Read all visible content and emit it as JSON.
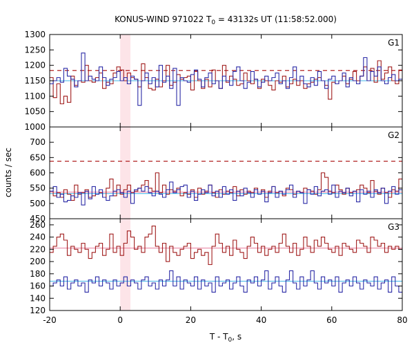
{
  "chart_data": {
    "type": "line",
    "title": {
      "prefix": "KONUS-WIND 971022 T",
      "sub": "0",
      "suffix": " = 43132s UT (11:58:52.000)"
    },
    "xlabel": {
      "prefix": "T - T",
      "sub": "0",
      "suffix": ", s"
    },
    "ylabel": "counts / sec",
    "xlim": [
      -20,
      80
    ],
    "x_ticks": [
      -20,
      0,
      20,
      40,
      60,
      80
    ],
    "x_tick_labels": [
      "-20",
      "0",
      "20",
      "40",
      "60",
      "80"
    ],
    "highlight_interval": [
      0,
      2.9
    ],
    "highlight_color": "#fde4e8",
    "series_colors": {
      "red": "#a01c1c",
      "blue": "#2a2aa6"
    },
    "panels": [
      {
        "label": "G1",
        "ylim": [
          1000,
          1300
        ],
        "y_ticks": [
          1000,
          1050,
          1100,
          1150,
          1200,
          1250,
          1300
        ],
        "y_tick_labels": [
          "1000",
          "1050",
          "1100",
          "1150",
          "1200",
          "1250",
          "1300"
        ],
        "baseline_red": 1150,
        "baseline_blue": 1150,
        "threshold_red": 1183,
        "bin_width": 1.0,
        "x_start": -20,
        "series": [
          {
            "color": "red",
            "values": [
              1160,
              1095,
              1140,
              1075,
              1100,
              1080,
              1165,
              1135,
              1150,
              1145,
              1200,
              1150,
              1145,
              1160,
              1175,
              1125,
              1145,
              1140,
              1175,
              1195,
              1185,
              1150,
              1175,
              1160,
              1155,
              1130,
              1205,
              1160,
              1125,
              1120,
              1155,
              1130,
              1150,
              1200,
              1135,
              1145,
              1170,
              1155,
              1160,
              1165,
              1120,
              1180,
              1150,
              1125,
              1155,
              1130,
              1185,
              1150,
              1125,
              1200,
              1145,
              1165,
              1155,
              1135,
              1140,
              1175,
              1150,
              1140,
              1155,
              1125,
              1155,
              1150,
              1135,
              1120,
              1150,
              1145,
              1165,
              1130,
              1140,
              1155,
              1135,
              1150,
              1125,
              1140,
              1145,
              1155,
              1160,
              1150,
              1135,
              1090,
              1145,
              1140,
              1150,
              1165,
              1140,
              1155,
              1180,
              1150,
              1165,
              1195,
              1150,
              1190,
              1145,
              1215,
              1155,
              1175,
              1195,
              1150,
              1140,
              1185
            ]
          },
          {
            "color": "blue",
            "values": [
              1140,
              1150,
              1160,
              1145,
              1190,
              1165,
              1155,
              1130,
              1150,
              1240,
              1150,
              1165,
              1155,
              1150,
              1195,
              1160,
              1135,
              1155,
              1160,
              1180,
              1150,
              1160,
              1140,
              1165,
              1155,
              1070,
              1150,
              1175,
              1140,
              1160,
              1130,
              1200,
              1145,
              1165,
              1125,
              1190,
              1070,
              1160,
              1150,
              1145,
              1170,
              1185,
              1155,
              1130,
              1160,
              1175,
              1140,
              1150,
              1125,
              1165,
              1150,
              1135,
              1180,
              1195,
              1150,
              1125,
              1145,
              1180,
              1155,
              1130,
              1145,
              1165,
              1150,
              1160,
              1175,
              1140,
              1150,
              1125,
              1160,
              1195,
              1150,
              1165,
              1140,
              1130,
              1160,
              1135,
              1180,
              1150,
              1125,
              1155,
              1165,
              1140,
              1150,
              1175,
              1130,
              1160,
              1150,
              1140,
              1165,
              1225,
              1150,
              1180,
              1165,
              1195,
              1150,
              1140,
              1160,
              1170,
              1150,
              1155
            ]
          }
        ]
      },
      {
        "label": "G2",
        "ylim": [
          450,
          750
        ],
        "y_ticks": [
          450,
          500,
          550,
          600,
          650,
          700
        ],
        "y_tick_labels": [
          "450",
          "500",
          "550",
          "600",
          "650",
          "700"
        ],
        "baseline_red": 537,
        "baseline_blue": 532,
        "threshold_red": 638,
        "bin_width": 1.0,
        "x_start": -20,
        "series": [
          {
            "color": "red",
            "values": [
              540,
              525,
              535,
              520,
              545,
              530,
              510,
              560,
              530,
              535,
              545,
              520,
              525,
              530,
              535,
              520,
              550,
              580,
              525,
              560,
              530,
              545,
              560,
              535,
              540,
              550,
              560,
              575,
              550,
              540,
              600,
              535,
              560,
              530,
              545,
              540,
              550,
              525,
              535,
              530,
              545,
              520,
              550,
              530,
              540,
              560,
              535,
              520,
              545,
              530,
              540,
              535,
              555,
              525,
              545,
              530,
              540,
              535,
              550,
              530,
              545,
              520,
              540,
              555,
              535,
              540,
              525,
              550,
              545,
              530,
              540,
              535,
              550,
              545,
              540,
              530,
              545,
              600,
              585,
              540,
              535,
              560,
              545,
              530,
              550,
              535,
              540,
              545,
              560,
              550,
              535,
              575,
              540,
              530,
              550,
              535,
              520,
              545,
              540,
              580
            ]
          },
          {
            "color": "blue",
            "values": [
              540,
              555,
              520,
              530,
              505,
              510,
              525,
              520,
              535,
              495,
              540,
              515,
              555,
              530,
              545,
              520,
              510,
              525,
              540,
              545,
              535,
              520,
              540,
              500,
              545,
              550,
              540,
              555,
              535,
              525,
              540,
              530,
              520,
              545,
              570,
              535,
              545,
              555,
              560,
              520,
              540,
              510,
              530,
              545,
              535,
              560,
              525,
              540,
              520,
              555,
              530,
              545,
              510,
              540,
              525,
              550,
              535,
              520,
              545,
              530,
              540,
              505,
              535,
              555,
              520,
              540,
              530,
              545,
              560,
              520,
              540,
              535,
              500,
              545,
              530,
              555,
              525,
              540,
              545,
              530,
              560,
              520,
              540,
              535,
              550,
              525,
              540,
              505,
              545,
              530,
              540,
              520,
              545,
              535,
              550,
              500,
              540,
              555,
              530,
              545
            ]
          }
        ]
      },
      {
        "label": "G3",
        "ylim": [
          120,
          270
        ],
        "y_ticks": [
          120,
          140,
          160,
          180,
          200,
          220,
          240,
          260
        ],
        "y_tick_labels": [
          "120",
          "140",
          "160",
          "180",
          "200",
          "220",
          "240",
          "260"
        ],
        "baseline_red": 222,
        "baseline_blue": 168,
        "threshold_red": null,
        "bin_width": 1.0,
        "x_start": -20,
        "series": [
          {
            "color": "red",
            "values": [
              215,
              225,
              240,
              245,
              235,
              210,
              225,
              220,
              215,
              230,
              220,
              205,
              215,
              225,
              230,
              210,
              220,
              245,
              215,
              225,
              210,
              230,
              250,
              240,
              220,
              225,
              215,
              240,
              245,
              258,
              225,
              215,
              230,
              200,
              225,
              215,
              210,
              220,
              225,
              230,
              205,
              215,
              220,
              210,
              215,
              195,
              225,
              245,
              230,
              215,
              225,
              210,
              235,
              220,
              215,
              205,
              225,
              240,
              230,
              215,
              225,
              210,
              220,
              225,
              215,
              230,
              245,
              225,
              215,
              230,
              210,
              220,
              240,
              225,
              215,
              235,
              225,
              240,
              230,
              220,
              215,
              225,
              210,
              230,
              225,
              220,
              215,
              235,
              230,
              225,
              215,
              240,
              235,
              225,
              230,
              215,
              225,
              220,
              225,
              220
            ]
          },
          {
            "color": "blue",
            "values": [
              160,
              165,
              170,
              160,
              175,
              155,
              165,
              170,
              160,
              165,
              150,
              170,
              165,
              175,
              160,
              170,
              165,
              155,
              170,
              160,
              165,
              175,
              160,
              170,
              165,
              155,
              170,
              175,
              160,
              165,
              155,
              170,
              160,
              170,
              185,
              160,
              175,
              155,
              170,
              165,
              160,
              175,
              155,
              170,
              160,
              165,
              150,
              175,
              160,
              165,
              170,
              155,
              165,
              175,
              160,
              150,
              170,
              165,
              175,
              160,
              170,
              185,
              155,
              165,
              175,
              160,
              150,
              170,
              185,
              165,
              155,
              175,
              160,
              170,
              185,
              165,
              155,
              175,
              165,
              170,
              160,
              175,
              150,
              165,
              170,
              160,
              175,
              165,
              155,
              170,
              165,
              160,
              175,
              155,
              165,
              170,
              150,
              175,
              160,
              150
            ]
          }
        ]
      }
    ]
  }
}
